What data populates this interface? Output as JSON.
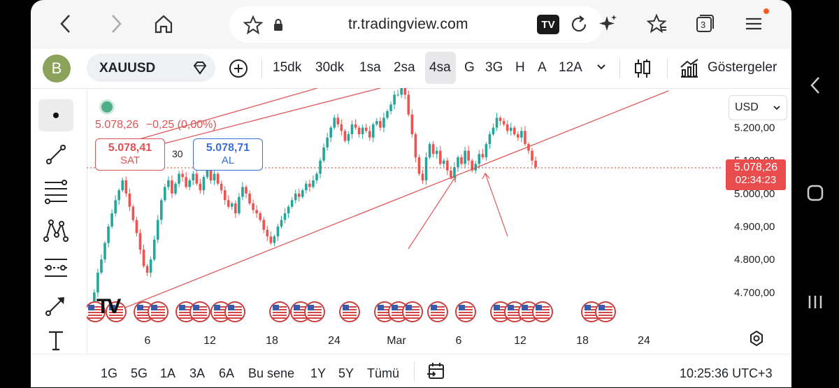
{
  "browser": {
    "url": "tr.tradingview.com",
    "tab_count": "3"
  },
  "toolbar": {
    "avatar_letter": "B",
    "symbol": "XAUUSD",
    "timeframes": [
      "15dk",
      "30dk",
      "1sa",
      "2sa",
      "4sa",
      "G",
      "3G",
      "H",
      "A",
      "12A"
    ],
    "active_timeframe": "4sa",
    "indicators_label": "Göstergeler"
  },
  "chart": {
    "last_price": "5.078,26",
    "change": "−0,25 (0,00%)",
    "sell_price": "5.078,41",
    "sell_label": "SAT",
    "spread": "30",
    "buy_price": "5.078,71",
    "buy_label": "AL",
    "currency": "USD",
    "price_label": "5.078,26",
    "countdown": "02:34:23",
    "y_ticks": [
      "5.200,00",
      "5.100,00",
      "5.000,00",
      "4.900,00",
      "4.800,00",
      "4.700,00"
    ],
    "x_ticks": [
      "6",
      "12",
      "18",
      "24",
      "Mar",
      "6",
      "12",
      "18",
      "24"
    ],
    "colors": {
      "up": "#26a69a",
      "down": "#ef5350",
      "channel": "#e05a5a"
    }
  },
  "chart_data": {
    "type": "candlestick",
    "ylim": [
      4620,
      5320
    ],
    "current_price": 5078.26,
    "closes": [
      4660,
      4700,
      4760,
      4800,
      4850,
      4900,
      4940,
      4980,
      5010,
      5040,
      5000,
      4960,
      4920,
      4880,
      4830,
      4780,
      4760,
      4800,
      4860,
      4920,
      4980,
      5020,
      5040,
      5000,
      5030,
      5060,
      5050,
      5020,
      5040,
      5060,
      5030,
      5010,
      5050,
      5070,
      5040,
      5060,
      5030,
      5010,
      4980,
      4960,
      4970,
      4940,
      4990,
      5020,
      5000,
      4970,
      4950,
      4940,
      4920,
      4890,
      4870,
      4850,
      4870,
      4900,
      4920,
      4940,
      4960,
      4980,
      5000,
      4990,
      5010,
      5030,
      5020,
      5040,
      5060,
      5100,
      5140,
      5170,
      5200,
      5230,
      5210,
      5190,
      5160,
      5180,
      5210,
      5200,
      5180,
      5200,
      5190,
      5170,
      5210,
      5220,
      5200,
      5230,
      5250,
      5270,
      5300,
      5300,
      5320,
      5300,
      5240,
      5180,
      5110,
      5060,
      5040,
      5110,
      5150,
      5120,
      5130,
      5090,
      5100,
      5070,
      5050,
      5080,
      5110,
      5090,
      5130,
      5100,
      5070,
      5090,
      5120,
      5110,
      5150,
      5180,
      5200,
      5230,
      5220,
      5210,
      5190,
      5200,
      5180,
      5170,
      5190,
      5150,
      5130,
      5100,
      5080
    ]
  },
  "bottom": {
    "ranges": [
      "1G",
      "5G",
      "1A",
      "3A",
      "6A",
      "Bu sene",
      "1Y",
      "5Y",
      "Tümü"
    ],
    "clock": "10:25:36 UTC+3"
  }
}
